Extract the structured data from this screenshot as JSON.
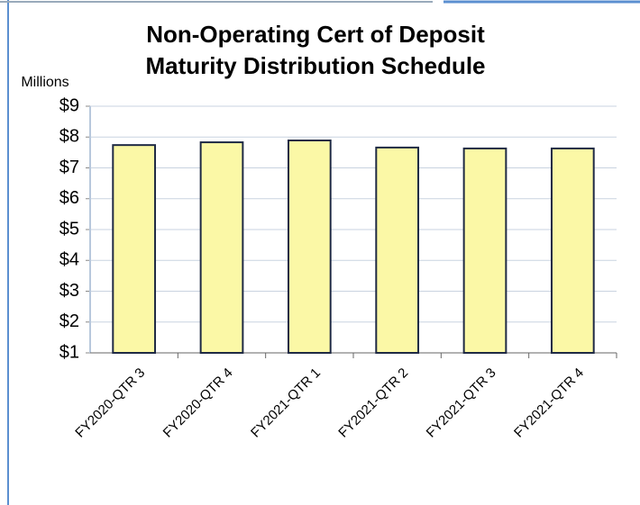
{
  "chart_data": {
    "type": "bar",
    "title": [
      "Non-Operating Cert of Deposit",
      "Maturity Distribution Schedule"
    ],
    "y_label": "Millions",
    "categories": [
      "FY2020-QTR 3",
      "FY2020-QTR 4",
      "FY2021-QTR 1",
      "FY2021-QTR 2",
      "FY2021-QTR 3",
      "FY2021-QTR 4"
    ],
    "values": [
      7.74,
      7.83,
      7.89,
      7.66,
      7.63,
      7.63
    ],
    "color": "#fbf8a6",
    "ylim": [
      1,
      9
    ],
    "yticks": [
      {
        "value": 1,
        "label": "$1"
      },
      {
        "value": 2,
        "label": "$2"
      },
      {
        "value": 3,
        "label": "$3"
      },
      {
        "value": 4,
        "label": "$4"
      },
      {
        "value": 5,
        "label": "$5"
      },
      {
        "value": 6,
        "label": "$6"
      },
      {
        "value": 7,
        "label": "$7"
      },
      {
        "value": 8,
        "label": "$8"
      },
      {
        "value": 9,
        "label": "$9"
      }
    ],
    "grid": true
  }
}
